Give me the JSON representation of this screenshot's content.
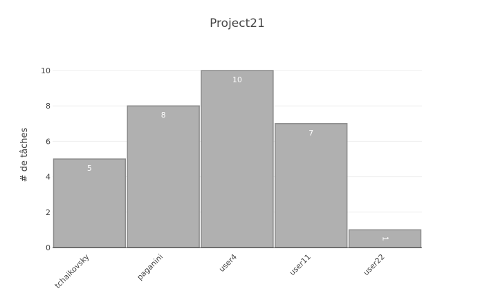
{
  "chart_data": {
    "type": "bar",
    "title": "Project21",
    "ylabel": "# de tâches",
    "xlabel": "",
    "categories": [
      "tchaikovsky",
      "paganini",
      "user4",
      "user11",
      "user22"
    ],
    "values": [
      5,
      8,
      10,
      7,
      1
    ],
    "ylim": [
      0,
      10
    ],
    "yticks": [
      0,
      2,
      4,
      6,
      8,
      10
    ],
    "grid": true,
    "legend": "none",
    "colors": {
      "bar_fill": "#b0b0b0",
      "bar_stroke": "#8c8c8c",
      "grid": "#eeeeee",
      "axis": "#444444",
      "text": "#444444",
      "value_label": "#ffffff"
    }
  }
}
